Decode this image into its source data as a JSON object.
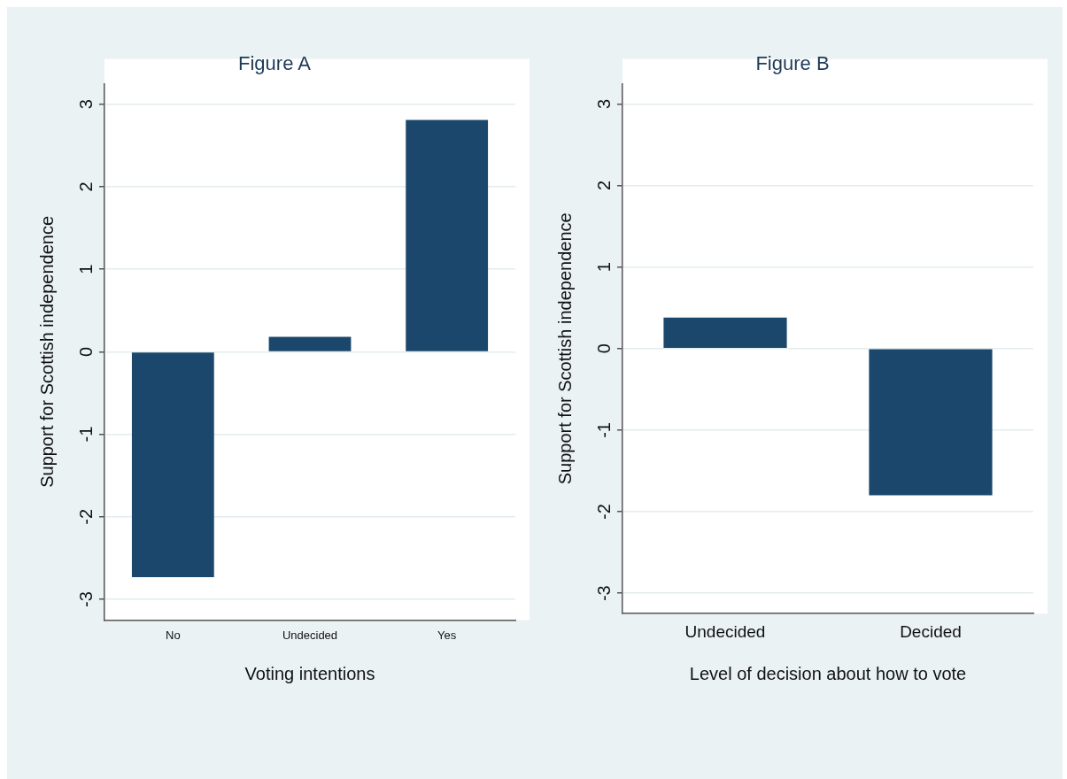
{
  "chart_data": [
    {
      "type": "bar",
      "title": "Figure A",
      "xlabel": "Voting intentions",
      "ylabel": "Support for Scottish independence",
      "categories": [
        "No",
        "Undecided",
        "Yes"
      ],
      "values": [
        -2.73,
        0.18,
        2.81
      ],
      "color": "#1c476d",
      "ylim": [
        -3.25,
        3.25
      ],
      "yticks": [
        -3,
        -2,
        -1,
        0,
        1,
        2,
        3
      ],
      "grid": "y"
    },
    {
      "type": "bar",
      "title": "Figure B",
      "xlabel": "Level of decision about how to vote",
      "ylabel": "Support for Scottish independence",
      "categories": [
        "Undecided",
        "Decided"
      ],
      "values": [
        0.38,
        -1.8
      ],
      "color": "#1c476d",
      "ylim": [
        -3.25,
        3.25
      ],
      "yticks": [
        -3,
        -2,
        -1,
        0,
        1,
        2,
        3
      ],
      "grid": "y"
    }
  ]
}
